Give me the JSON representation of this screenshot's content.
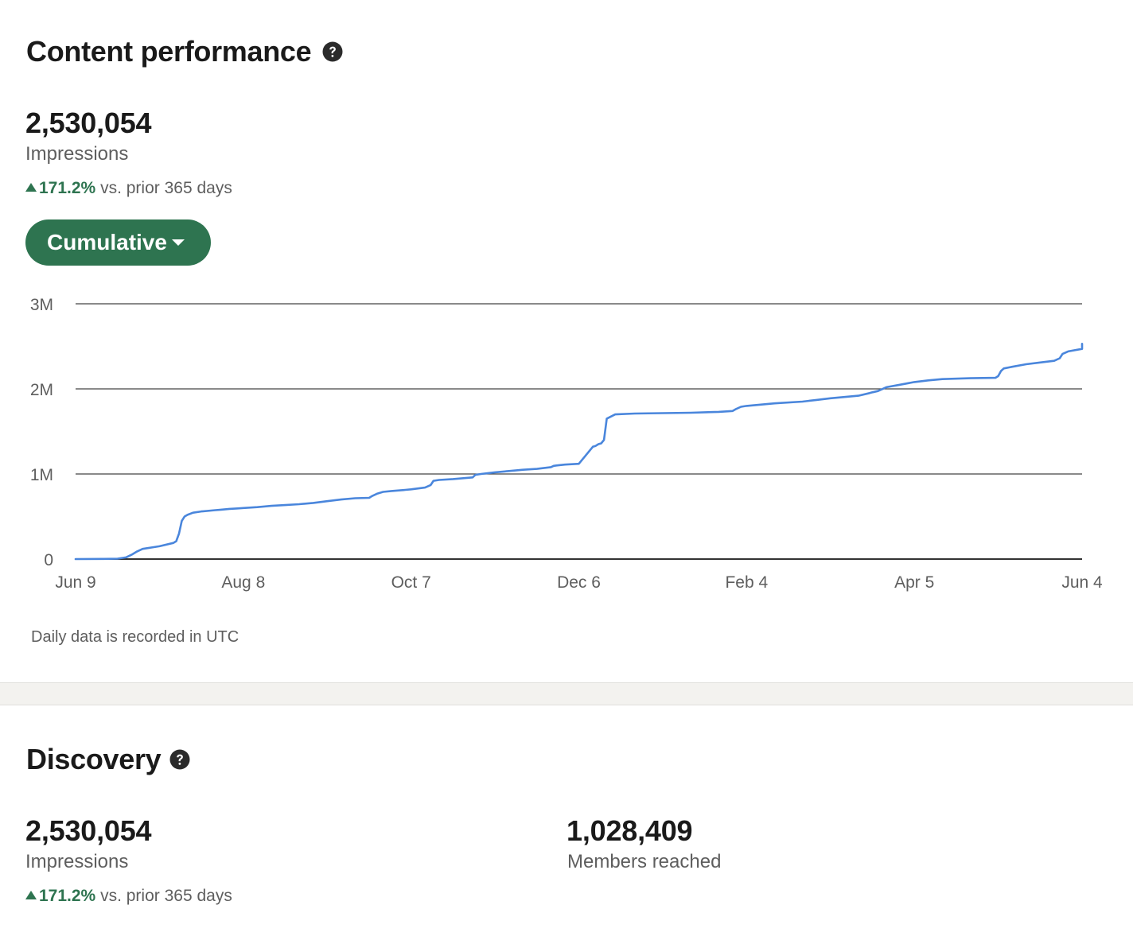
{
  "content_performance": {
    "title": "Content performance",
    "impressions_value": "2,530,054",
    "impressions_label": "Impressions",
    "delta_pct": "171.2%",
    "delta_text": " vs. prior 365 days",
    "dropdown_label": "Cumulative",
    "footnote": "Daily data is recorded in UTC"
  },
  "discovery": {
    "title": "Discovery",
    "impressions_value": "2,530,054",
    "impressions_label": "Impressions",
    "delta_pct": "171.2%",
    "delta_text": " vs. prior 365 days",
    "members_value": "1,028,409",
    "members_label": "Members reached"
  },
  "icons": {
    "help": "question-circle-icon",
    "delta": "triangle-up-icon",
    "dropdown": "caret-down-icon"
  },
  "colors": {
    "accent_green": "#2e7450",
    "line_blue": "#4a86dc",
    "band": "#f3f2ef"
  },
  "chart_data": {
    "type": "line",
    "x_tick_labels": [
      "Jun 9",
      "Aug 8",
      "Oct 7",
      "Dec 6",
      "Feb 4",
      "Apr 5",
      "Jun 4"
    ],
    "x_tick_days": [
      0,
      60,
      120,
      180,
      240,
      300,
      360
    ],
    "y_tick_labels": [
      "0",
      "1M",
      "2M",
      "3M"
    ],
    "y_ticks": [
      0,
      1000000,
      2000000,
      3000000
    ],
    "ylim": [
      0,
      3000000
    ],
    "xlim": [
      0,
      360
    ],
    "grid": true,
    "x_day0_label": "Jun 9",
    "series": [
      {
        "x": [
          0,
          10,
          15,
          18,
          20,
          22,
          24,
          30,
          35,
          36,
          37,
          38,
          39,
          40,
          42,
          45,
          50,
          52,
          55,
          58,
          60,
          65,
          70,
          75,
          80,
          85,
          90,
          95,
          100,
          105,
          106,
          108,
          110,
          113,
          117,
          120,
          125,
          127,
          128,
          130,
          135,
          142,
          143,
          145,
          150,
          155,
          160,
          165,
          170,
          171,
          172,
          175,
          180,
          185,
          186,
          187,
          188,
          189,
          190,
          193,
          200,
          210,
          220,
          230,
          235,
          236,
          238,
          240,
          245,
          250,
          260,
          265,
          270,
          280,
          284,
          285,
          287,
          290,
          295,
          300,
          305,
          310,
          320,
          329,
          330,
          331,
          332,
          335,
          340,
          345,
          350,
          352,
          353,
          355,
          360,
          364
        ],
        "y": [
          0,
          2000,
          5000,
          20000,
          50000,
          90000,
          120000,
          150000,
          190000,
          210000,
          300000,
          450000,
          500000,
          520000,
          545000,
          560000,
          575000,
          580000,
          590000,
          595000,
          600000,
          610000,
          625000,
          635000,
          645000,
          660000,
          680000,
          700000,
          715000,
          720000,
          740000,
          770000,
          790000,
          800000,
          810000,
          820000,
          840000,
          870000,
          920000,
          930000,
          940000,
          960000,
          990000,
          1000000,
          1020000,
          1035000,
          1050000,
          1060000,
          1080000,
          1095000,
          1100000,
          1110000,
          1120000,
          1320000,
          1330000,
          1350000,
          1360000,
          1400000,
          1650000,
          1700000,
          1710000,
          1715000,
          1720000,
          1730000,
          1740000,
          1760000,
          1790000,
          1800000,
          1815000,
          1830000,
          1850000,
          1870000,
          1890000,
          1920000,
          1950000,
          1960000,
          1975000,
          2020000,
          2050000,
          2080000,
          2100000,
          2115000,
          2125000,
          2130000,
          2150000,
          2210000,
          2240000,
          2260000,
          2290000,
          2310000,
          2330000,
          2360000,
          2410000,
          2440000,
          2470000,
          2530000
        ]
      }
    ]
  }
}
